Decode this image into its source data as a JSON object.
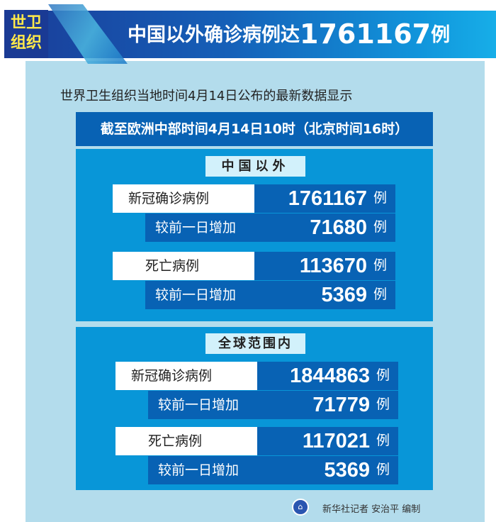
{
  "header": {
    "tag_line1": "世卫",
    "tag_line2": "组织",
    "title_text": "中国以外确诊病例达",
    "title_number": "1761167",
    "title_unit": "例"
  },
  "subtitle": "世界卫生组织当地时间4月14日公布的最新数据显示",
  "time_bar": "截至欧洲中部时间4月14日10时（北京时间16时）",
  "sections": [
    {
      "heading": "中国以外",
      "confirmed_label": "新冠确诊病例",
      "confirmed": "1761167",
      "confirmed_delta_label": "较前一日增加",
      "confirmed_delta": "71680",
      "deaths_label": "死亡病例",
      "deaths": "113670",
      "deaths_delta_label": "较前一日增加",
      "deaths_delta": "5369",
      "unit": "例"
    },
    {
      "heading": "全球范围内",
      "confirmed_label": "新冠确诊病例",
      "confirmed": "1844863",
      "confirmed_delta_label": "较前一日增加",
      "confirmed_delta": "71779",
      "deaths_label": "死亡病例",
      "deaths": "117021",
      "deaths_delta_label": "较前一日增加",
      "deaths_delta": "5369",
      "unit": "例"
    }
  ],
  "footer": {
    "credit": "新华社记者 安治平 编制",
    "logo_icon": "xinhua-logo-icon"
  },
  "colors": {
    "dark_blue": "#0862b4",
    "section_blue": "#0896d8",
    "panel": "#b3dcec",
    "tag_text": "#ffe94a"
  }
}
